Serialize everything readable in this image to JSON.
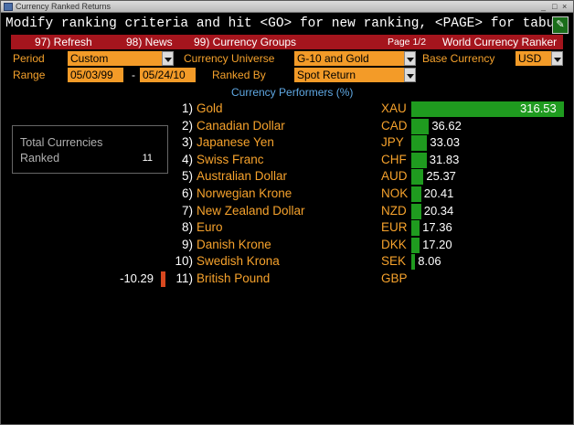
{
  "window": {
    "title": "Currency Ranked Returns",
    "controls": [
      "_",
      "□",
      "×"
    ]
  },
  "command_line": "Modify ranking criteria and hit <GO> for new ranking, <PAGE> for tabular data",
  "menu": {
    "refresh": "97) Refresh",
    "news": "98) News",
    "groups": "99) Currency Groups",
    "page": "Page 1/2",
    "app": "World Currency Ranker"
  },
  "controls": {
    "period_label": "Period",
    "period_value": "Custom",
    "universe_label": "Currency Universe",
    "universe_value": "G-10 and Gold",
    "base_label": "Base Currency",
    "base_value": "USD",
    "range_label": "Range",
    "range_start": "05/03/99",
    "range_sep": "-",
    "range_end": "05/24/10",
    "ranked_label": "Ranked By",
    "ranked_value": "Spot Return"
  },
  "section_title": "Currency Performers  (%)",
  "totals": {
    "line1": "Total Currencies",
    "line2": "Ranked",
    "value": "11"
  },
  "chart_data": {
    "type": "bar",
    "title": "Currency Performers  (%)",
    "ranks": [
      "1)",
      "2)",
      "3)",
      "4)",
      "5)",
      "6)",
      "7)",
      "8)",
      "9)",
      "10)",
      "11)"
    ],
    "categories": [
      "Gold",
      "Canadian Dollar",
      "Japanese Yen",
      "Swiss Franc",
      "Australian Dollar",
      "Norwegian Krone",
      "New Zealand Dollar",
      "Euro",
      "Danish Krone",
      "Swedish Krona",
      "British Pound"
    ],
    "codes": [
      "XAU",
      "CAD",
      "JPY",
      "CHF",
      "AUD",
      "NOK",
      "NZD",
      "EUR",
      "DKK",
      "SEK",
      "GBP"
    ],
    "values": [
      316.53,
      36.62,
      33.03,
      31.83,
      25.37,
      20.41,
      20.34,
      17.36,
      17.2,
      8.06,
      -10.29
    ],
    "labels": [
      "316.53",
      "36.62",
      "33.03",
      "31.83",
      "25.37",
      "20.41",
      "20.34",
      "17.36",
      "17.20",
      "8.06",
      "-10.29"
    ],
    "colors": {
      "positive": "#1f9b1f",
      "negative": "#d8481f"
    }
  }
}
